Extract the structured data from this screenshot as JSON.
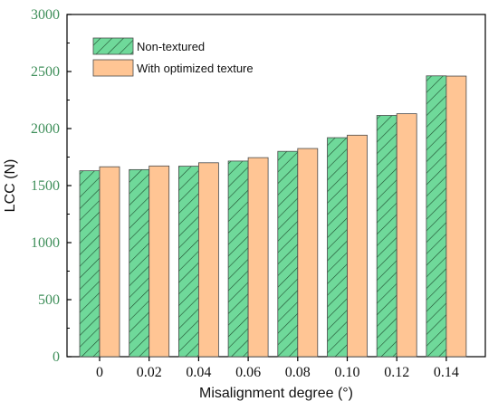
{
  "chart_data": {
    "type": "bar",
    "categories": [
      "0",
      "0.02",
      "0.04",
      "0.06",
      "0.08",
      "0.10",
      "0.12",
      "0.14"
    ],
    "series": [
      {
        "name": "Non-textured",
        "values": [
          1630,
          1640,
          1670,
          1715,
          1800,
          1920,
          2115,
          2462
        ],
        "color": "#6fd99a",
        "pattern": "diagonal-hatch"
      },
      {
        "name": "With optimized texture",
        "values": [
          1665,
          1672,
          1700,
          1745,
          1825,
          1942,
          2130,
          2460
        ],
        "color": "#ffc594",
        "pattern": "solid"
      }
    ],
    "xlabel": "Misalignment degree (°)",
    "ylabel": "LCC (N)",
    "ylim": [
      0,
      3000
    ],
    "yticks": [
      "0",
      "500",
      "1000",
      "1500",
      "2000",
      "2500",
      "3000"
    ],
    "grid": false,
    "legend_position": "top-left"
  }
}
